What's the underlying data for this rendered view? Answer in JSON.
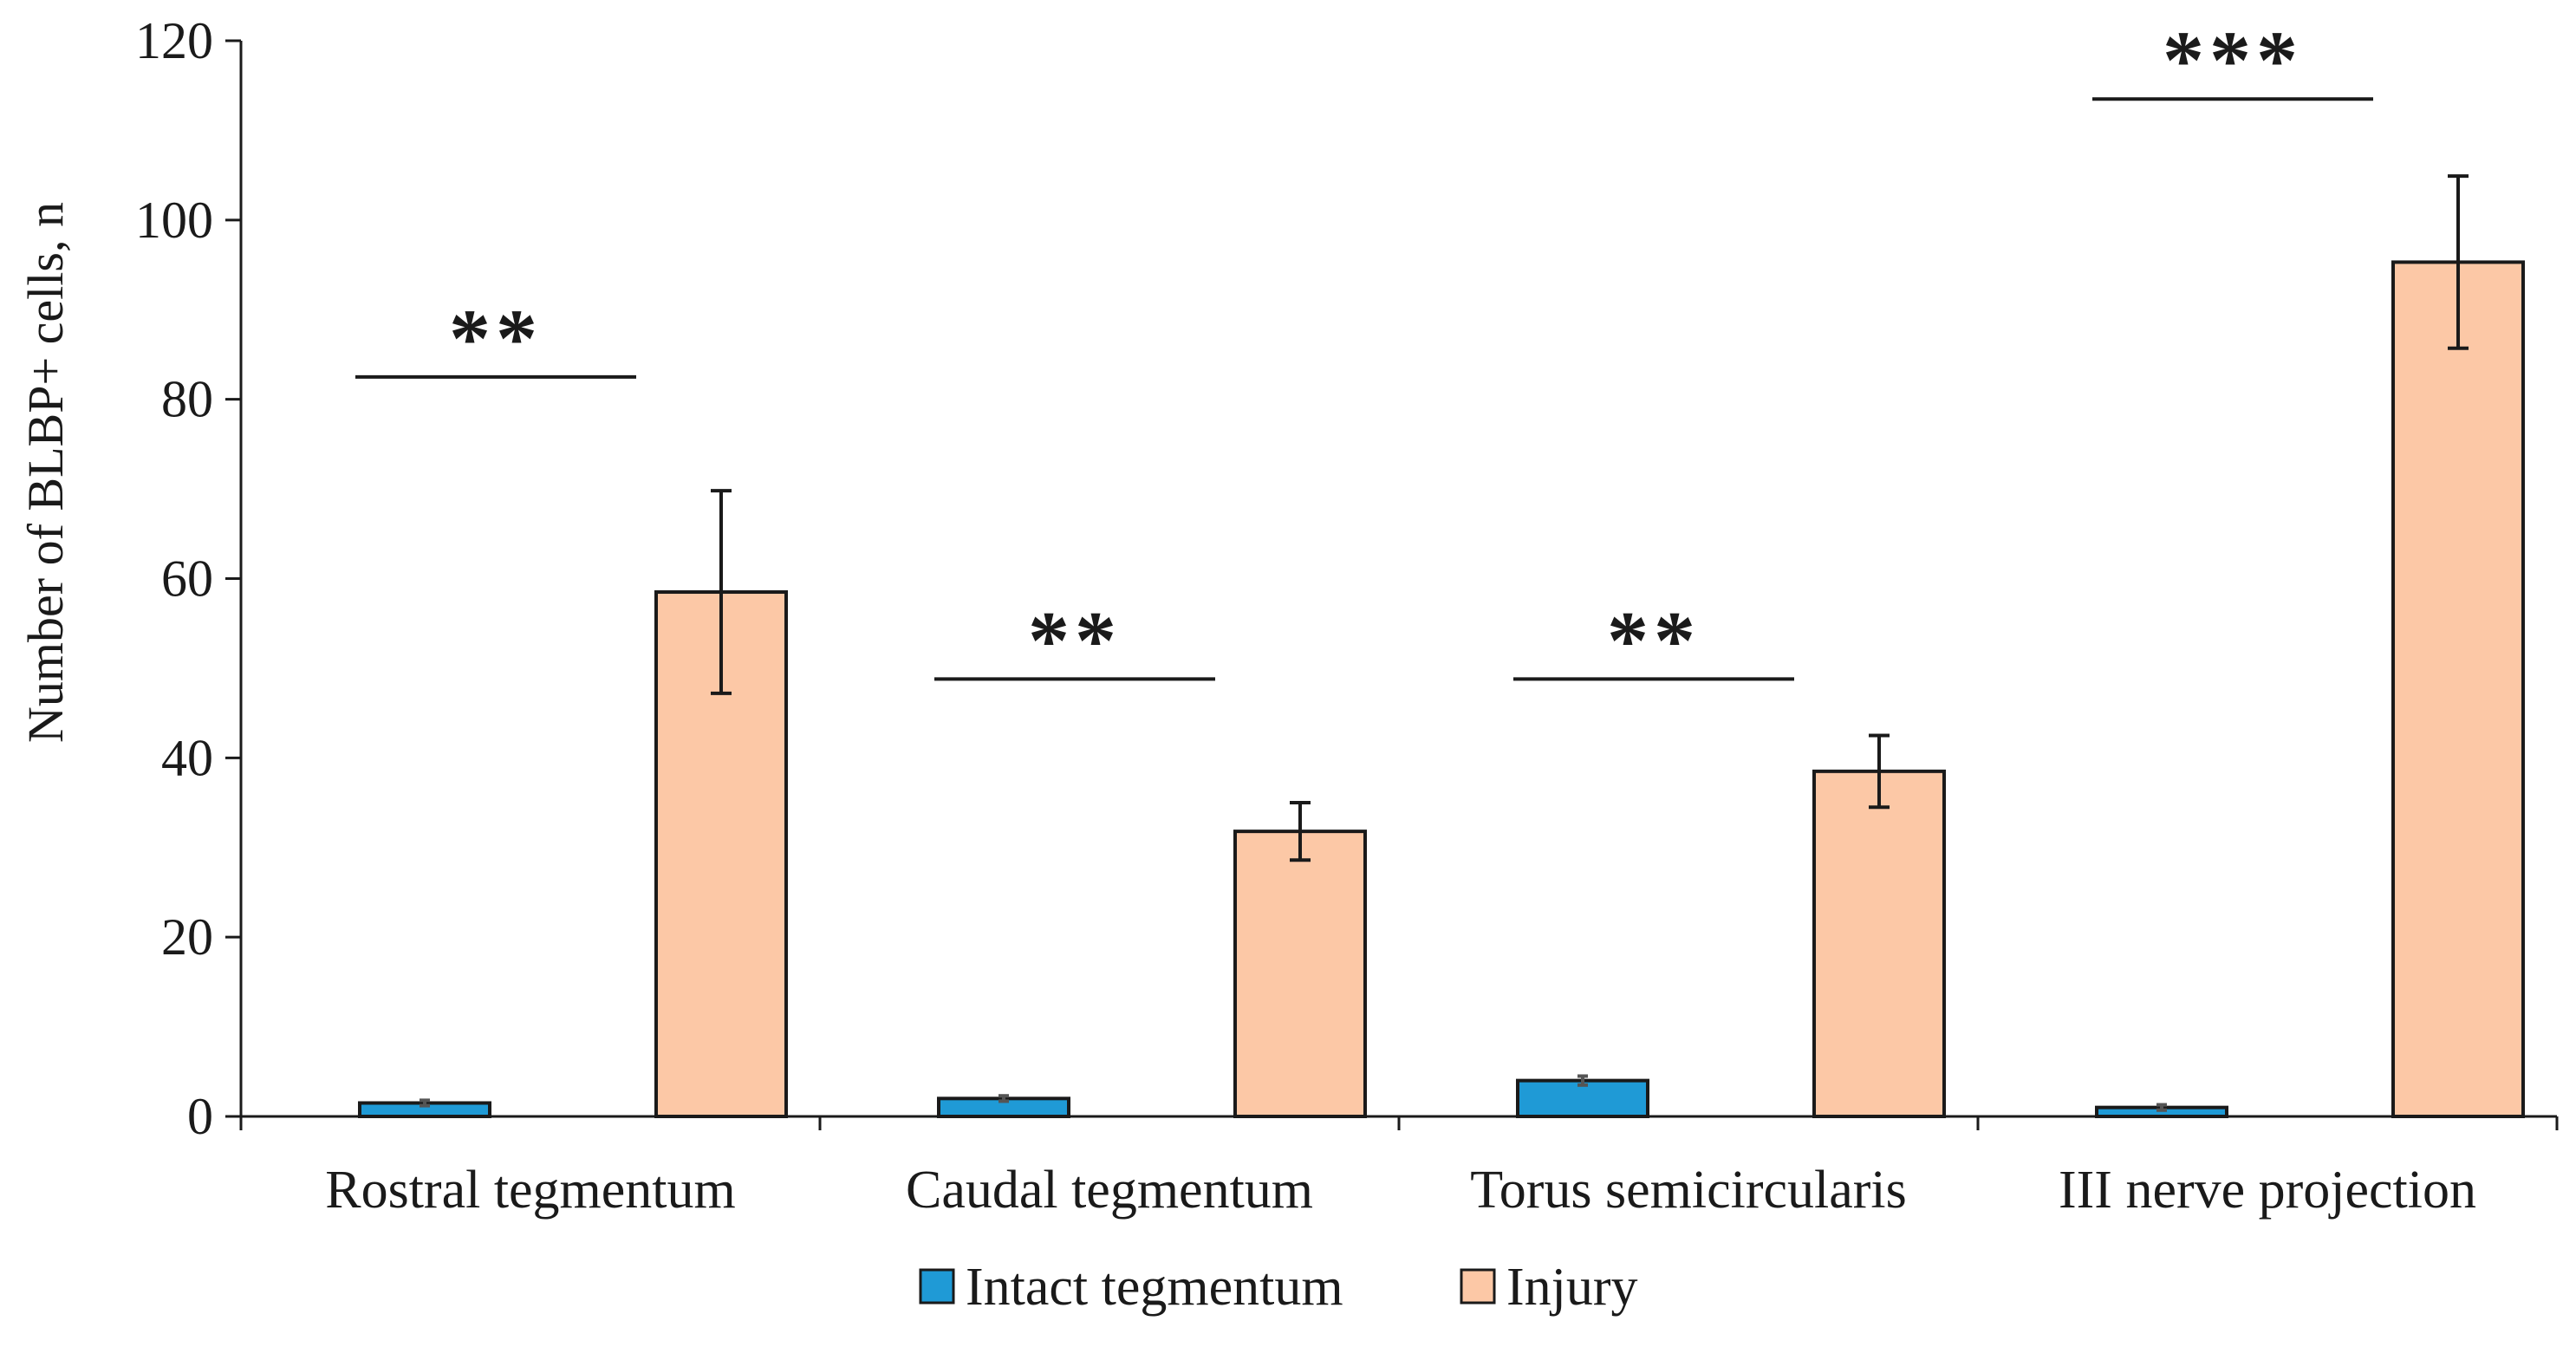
{
  "chart_data": {
    "type": "bar",
    "title": "",
    "xlabel": "",
    "ylabel": "Number of BLBP+ cells, n",
    "ylim": [
      0,
      120
    ],
    "yticks": [
      0,
      20,
      40,
      60,
      80,
      100,
      120
    ],
    "categories": [
      "Rostral tegmentum",
      "Caudal tegmentum",
      "Torus semicircularis",
      "III nerve projection"
    ],
    "series": [
      {
        "name": "Intact tegmentum",
        "color": "#1f9ad6",
        "values": [
          1.5,
          2.0,
          4.0,
          1.0
        ],
        "errors": [
          0.3,
          0.3,
          0.5,
          0.3
        ]
      },
      {
        "name": "Injury",
        "color": "#fcc8a6",
        "values": [
          58.5,
          31.8,
          38.5,
          95.3
        ],
        "errors": [
          11.3,
          3.2,
          4.0,
          9.6
        ]
      }
    ],
    "significance": [
      {
        "category": "Rostral tegmentum",
        "label": "**",
        "level": 82.5
      },
      {
        "category": "Caudal tegmentum",
        "label": "**",
        "level": 48.8
      },
      {
        "category": "Torus semicircularis",
        "label": "**",
        "level": 48.8
      },
      {
        "category": "III nerve projection",
        "label": "***",
        "level": 113.5
      }
    ],
    "legend": {
      "position": "bottom-center",
      "entries": [
        "Intact tegmentum",
        "Injury"
      ]
    },
    "grid": false
  }
}
